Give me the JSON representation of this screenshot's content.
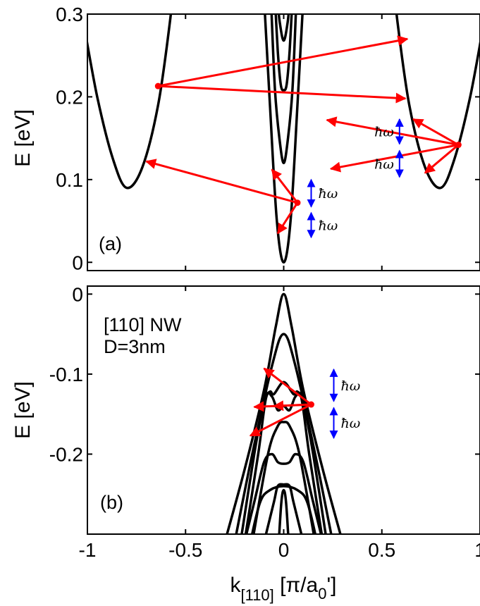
{
  "chart_data": [
    {
      "type": "line",
      "panel_label": "(a)",
      "ylabel": "E [eV]",
      "xlim": [
        -1,
        1
      ],
      "ylim": [
        -0.01,
        0.3
      ],
      "yticks": [
        0,
        0.1,
        0.2,
        0.3
      ],
      "ytick_labels": [
        "0",
        "0.1",
        "0.2",
        "0.3"
      ],
      "xticks": [
        -1,
        -0.5,
        0,
        0.5,
        1
      ],
      "line_color": "#000000",
      "series": [
        {
          "points": [
            [
              -1.02,
              0.29
            ],
            [
              -0.95,
              0.2
            ],
            [
              -0.87,
              0.125
            ],
            [
              -0.8,
              0.09
            ],
            [
              -0.72,
              0.115
            ],
            [
              -0.64,
              0.19
            ],
            [
              -0.58,
              0.29
            ],
            [
              -0.55,
              0.36
            ]
          ]
        },
        {
          "points": [
            [
              0.55,
              0.36
            ],
            [
              0.58,
              0.29
            ],
            [
              0.64,
              0.19
            ],
            [
              0.72,
              0.115
            ],
            [
              0.8,
              0.09
            ],
            [
              0.87,
              0.125
            ],
            [
              0.95,
              0.2
            ],
            [
              1.02,
              0.29
            ]
          ]
        },
        {
          "points": [
            [
              -0.1,
              0.32
            ],
            [
              -0.07,
              0.19
            ],
            [
              -0.035,
              0.05
            ],
            [
              0,
              0
            ],
            [
              0.035,
              0.05
            ],
            [
              0.07,
              0.19
            ],
            [
              0.1,
              0.32
            ]
          ]
        },
        {
          "points": [
            [
              -0.065,
              0.32
            ],
            [
              -0.045,
              0.21
            ],
            [
              -0.022,
              0.15
            ],
            [
              0,
              0.12
            ],
            [
              0.022,
              0.15
            ],
            [
              0.045,
              0.21
            ],
            [
              0.065,
              0.32
            ]
          ]
        },
        {
          "points": [
            [
              -0.045,
              0.32
            ],
            [
              -0.03,
              0.255
            ],
            [
              -0.015,
              0.215
            ],
            [
              0,
              0.208
            ],
            [
              0.015,
              0.215
            ],
            [
              0.03,
              0.255
            ],
            [
              0.045,
              0.32
            ]
          ]
        },
        {
          "points": [
            [
              -0.032,
              0.32
            ],
            [
              -0.02,
              0.29
            ],
            [
              0,
              0.268
            ],
            [
              0.02,
              0.29
            ],
            [
              0.032,
              0.32
            ]
          ]
        },
        {
          "points": [
            [
              -0.02,
              0.32
            ],
            [
              0,
              0.305
            ],
            [
              0.02,
              0.32
            ]
          ]
        }
      ],
      "arrow_color": "#ff0000",
      "arrows": [
        {
          "from": [
            -0.64,
            0.213
          ],
          "to": [
            0.63,
            0.27
          ]
        },
        {
          "from": [
            -0.64,
            0.213
          ],
          "to": [
            0.62,
            0.198
          ]
        },
        {
          "from": [
            0.89,
            0.142
          ],
          "to": [
            0.22,
            0.172
          ]
        },
        {
          "from": [
            0.89,
            0.142
          ],
          "to": [
            0.66,
            0.173
          ]
        },
        {
          "from": [
            0.89,
            0.142
          ],
          "to": [
            0.24,
            0.113
          ]
        },
        {
          "from": [
            0.89,
            0.142
          ],
          "to": [
            0.72,
            0.108
          ]
        },
        {
          "from": [
            0.07,
            0.072
          ],
          "to": [
            -0.7,
            0.122
          ]
        },
        {
          "from": [
            0.07,
            0.072
          ],
          "to": [
            -0.06,
            0.112
          ]
        },
        {
          "from": [
            0.07,
            0.072
          ],
          "to": [
            -0.03,
            0.035
          ]
        }
      ],
      "hbar_omega": [
        {
          "x": 0.14,
          "y1": 0.1,
          "y2": 0.067,
          "label": "ħω"
        },
        {
          "x": 0.14,
          "y1": 0.06,
          "y2": 0.03,
          "label": "ħω"
        },
        {
          "x": 0.59,
          "y1": 0.173,
          "y2": 0.143,
          "label": "ħω"
        },
        {
          "x": 0.59,
          "y1": 0.135,
          "y2": 0.103,
          "label": "ħω"
        }
      ]
    },
    {
      "type": "line",
      "panel_label": "(b)",
      "annotation_lines": [
        "[110] NW",
        "D=3nm"
      ],
      "ylabel": "E [eV]",
      "xlabel": "k[110] [π/a0']",
      "xlim": [
        -1,
        1
      ],
      "ylim": [
        -0.3,
        0.01
      ],
      "yticks": [
        0,
        -0.1,
        -0.2
      ],
      "ytick_labels": [
        "0",
        "-0.1",
        "-0.2"
      ],
      "xticks": [
        -1,
        -0.5,
        0,
        0.5,
        1
      ],
      "xtick_labels": [
        "-1",
        "-0.5",
        "0",
        "0.5",
        "1"
      ],
      "line_color": "#000000",
      "series": [
        {
          "points": [
            [
              -0.3,
              -0.31
            ],
            [
              -0.2,
              -0.22
            ],
            [
              -0.1,
              -0.12
            ],
            [
              -0.04,
              -0.04
            ],
            [
              0,
              0
            ],
            [
              0.04,
              -0.04
            ],
            [
              0.1,
              -0.12
            ],
            [
              0.2,
              -0.22
            ],
            [
              0.3,
              -0.31
            ]
          ]
        },
        {
          "points": [
            [
              -0.25,
              -0.31
            ],
            [
              -0.16,
              -0.2
            ],
            [
              -0.06,
              -0.09
            ],
            [
              0,
              -0.05
            ],
            [
              0.06,
              -0.09
            ],
            [
              0.16,
              -0.2
            ],
            [
              0.25,
              -0.31
            ]
          ]
        },
        {
          "points": [
            [
              -0.22,
              -0.31
            ],
            [
              -0.15,
              -0.2
            ],
            [
              -0.1,
              -0.135
            ],
            [
              -0.07,
              -0.122
            ],
            [
              -0.05,
              -0.125
            ],
            [
              0,
              -0.11
            ],
            [
              0.05,
              -0.125
            ],
            [
              0.07,
              -0.122
            ],
            [
              0.1,
              -0.135
            ],
            [
              0.15,
              -0.2
            ],
            [
              0.22,
              -0.31
            ]
          ]
        },
        {
          "points": [
            [
              -0.2,
              -0.31
            ],
            [
              -0.13,
              -0.2
            ],
            [
              -0.09,
              -0.13
            ],
            [
              -0.06,
              -0.128
            ],
            [
              -0.03,
              -0.145
            ],
            [
              0,
              -0.14
            ],
            [
              0.03,
              -0.145
            ],
            [
              0.06,
              -0.128
            ],
            [
              0.09,
              -0.13
            ],
            [
              0.13,
              -0.2
            ],
            [
              0.2,
              -0.31
            ]
          ]
        },
        {
          "points": [
            [
              -0.16,
              -0.31
            ],
            [
              -0.08,
              -0.2
            ],
            [
              -0.03,
              -0.165
            ],
            [
              0,
              -0.16
            ],
            [
              0.03,
              -0.165
            ],
            [
              0.08,
              -0.2
            ],
            [
              0.16,
              -0.31
            ]
          ]
        },
        {
          "points": [
            [
              -0.2,
              -0.31
            ],
            [
              -0.15,
              -0.26
            ],
            [
              -0.1,
              -0.21
            ],
            [
              -0.06,
              -0.2
            ],
            [
              -0.03,
              -0.21
            ],
            [
              0,
              -0.212
            ],
            [
              0.03,
              -0.21
            ],
            [
              0.06,
              -0.2
            ],
            [
              0.1,
              -0.21
            ],
            [
              0.15,
              -0.26
            ],
            [
              0.2,
              -0.31
            ]
          ]
        },
        {
          "points": [
            [
              -0.17,
              -0.31
            ],
            [
              -0.12,
              -0.26
            ],
            [
              -0.07,
              -0.245
            ],
            [
              0,
              -0.24
            ],
            [
              0.07,
              -0.245
            ],
            [
              0.12,
              -0.26
            ],
            [
              0.17,
              -0.31
            ]
          ]
        },
        {
          "points": [
            [
              -0.1,
              -0.31
            ],
            [
              -0.05,
              -0.26
            ],
            [
              -0.03,
              -0.24
            ],
            [
              0,
              -0.238
            ],
            [
              0.03,
              -0.24
            ],
            [
              0.05,
              -0.26
            ],
            [
              0.1,
              -0.31
            ]
          ]
        },
        {
          "points": [
            [
              -0.025,
              -0.31
            ],
            [
              -0.012,
              -0.26
            ],
            [
              0,
              -0.245
            ],
            [
              0.012,
              -0.26
            ],
            [
              0.025,
              -0.31
            ]
          ]
        }
      ],
      "arrow_color": "#ff0000",
      "arrows": [
        {
          "from": [
            0.14,
            -0.138
          ],
          "to": [
            -0.1,
            -0.093
          ]
        },
        {
          "from": [
            0.14,
            -0.138
          ],
          "to": [
            -0.15,
            -0.141
          ]
        },
        {
          "from": [
            0.14,
            -0.138
          ],
          "to": [
            -0.05,
            -0.14
          ]
        },
        {
          "from": [
            0.14,
            -0.138
          ],
          "to": [
            -0.17,
            -0.177
          ]
        }
      ],
      "hbar_omega": [
        {
          "x": 0.255,
          "y1": -0.094,
          "y2": -0.134,
          "label": "ħω"
        },
        {
          "x": 0.255,
          "y1": -0.142,
          "y2": -0.18,
          "label": "ħω"
        }
      ]
    }
  ]
}
